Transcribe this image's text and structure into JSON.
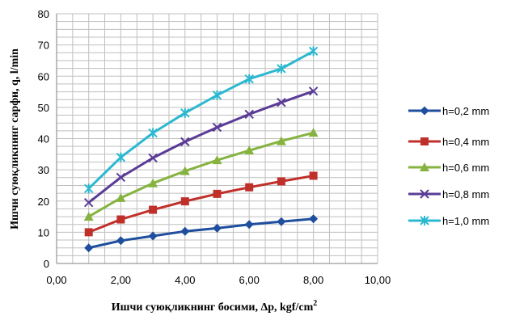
{
  "chart_data": {
    "type": "line",
    "title": "",
    "xlabel": "Ишчи суюқликнинг босими, Δp, kgf/cm",
    "xlabel_sup": "2",
    "ylabel": "Ишчи суюқликнинг сарфи, q, l/min",
    "xlim": [
      0,
      10
    ],
    "ylim": [
      0,
      80
    ],
    "x_ticks": [
      "0,00",
      "2,00",
      "4,00",
      "6,00",
      "8,00",
      "10,00"
    ],
    "y_ticks": [
      "0",
      "10",
      "20",
      "30",
      "40",
      "50",
      "60",
      "70",
      "80"
    ],
    "grid": true,
    "legend_position": "right",
    "x": [
      1,
      2,
      3,
      4,
      5,
      6,
      7,
      8
    ],
    "series": [
      {
        "name": "h=0,2 mm",
        "color": "#1f4e9e",
        "marker": "diamond",
        "values": [
          5,
          7.3,
          8.8,
          10.3,
          11.3,
          12.5,
          13.4,
          14.3
        ]
      },
      {
        "name": "h=0,4 mm",
        "color": "#c0302b",
        "marker": "square",
        "values": [
          10,
          14.1,
          17.2,
          19.9,
          22.3,
          24.4,
          26.3,
          28.1
        ]
      },
      {
        "name": "h=0,6 mm",
        "color": "#86b340",
        "marker": "triangle",
        "values": [
          15,
          21,
          25.7,
          29.6,
          33.1,
          36.2,
          39.2,
          41.9
        ]
      },
      {
        "name": "h=0,8 mm",
        "color": "#5a3c96",
        "marker": "x",
        "values": [
          19.5,
          27.6,
          33.8,
          39,
          43.6,
          47.8,
          51.6,
          55.2
        ]
      },
      {
        "name": "h=1,0 mm",
        "color": "#2cb8d0",
        "marker": "star",
        "values": [
          24,
          34,
          41.8,
          48.2,
          53.9,
          59.1,
          62.4,
          68
        ]
      }
    ]
  }
}
